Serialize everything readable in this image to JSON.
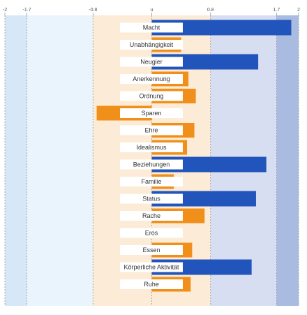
{
  "chart_data": {
    "type": "bar",
    "orientation": "horizontal",
    "xlim": [
      -2,
      2
    ],
    "tick_labels": [
      "-2",
      "-1.7",
      "-0.8",
      "u",
      "0.8",
      "1.7",
      "2"
    ],
    "tick_values": [
      -2,
      -1.7,
      -0.8,
      0,
      0.8,
      1.7,
      2
    ],
    "categories": [
      "Macht",
      "Unabhängigkeit",
      "Neugier",
      "Anerkennung",
      "Ordnung",
      "Sparen",
      "Ehre",
      "Idealismus",
      "Beziehungen",
      "Familie",
      "Status",
      "Rache",
      "Eros",
      "Essen",
      "Körperliche Aktivität",
      "Ruhe"
    ],
    "values": [
      1.9,
      0.4,
      1.45,
      0.5,
      0.6,
      -0.75,
      0.58,
      0.48,
      1.56,
      0.3,
      1.42,
      0.72,
      0.0,
      0.55,
      1.36,
      0.53
    ],
    "grid": true,
    "colors": {
      "strong": "#2255bb",
      "normal": "#f0901a",
      "band_far_neg": "#d6e8f8",
      "band_mid_neg": "#eaf4fd",
      "band_center": "#fcebd6",
      "band_mid_pos": "#d8def2",
      "band_far_pos": "#a9bbe0"
    }
  }
}
